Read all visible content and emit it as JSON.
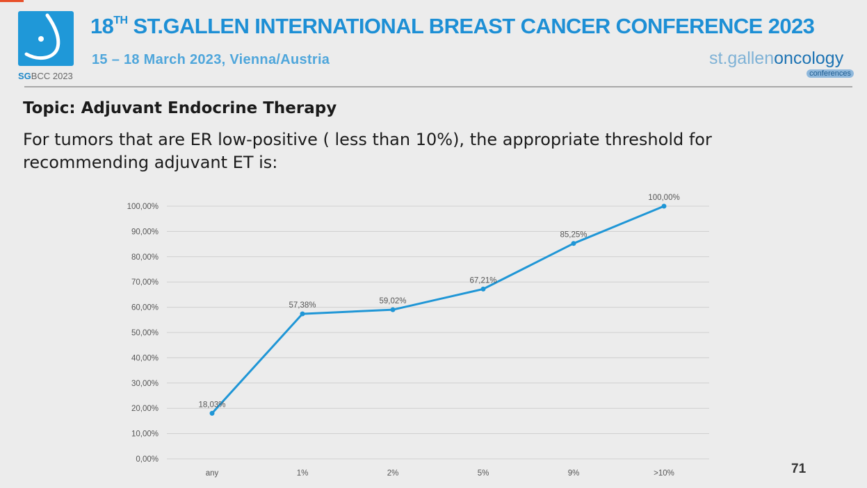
{
  "header": {
    "logo_text_bold": "SG",
    "logo_text_rest": "BCC 2023",
    "title_number": "18",
    "title_suffix": "TH",
    "title_rest": " ST.GALLEN INTERNATIONAL BREAST CANCER CONFERENCE 2023",
    "subtitle": "15 – 18 March 2023, Vienna/Austria",
    "brand_part1": "st.gallen",
    "brand_part2": "oncology",
    "brand_part3": "conferences"
  },
  "slide": {
    "topic": "Topic: Adjuvant Endocrine Therapy",
    "question": "For tumors that are ER low-positive ( less than 10%), the appropriate threshold for recommending adjuvant ET is:",
    "page_number": "71"
  },
  "colors": {
    "accent": "#1d8fd5",
    "line": "#1f96d6"
  },
  "chart_data": {
    "type": "line",
    "categories": [
      "any",
      "1%",
      "2%",
      "5%",
      "9%",
      ">10%"
    ],
    "values": [
      18.03,
      57.38,
      59.02,
      67.21,
      85.25,
      100.0
    ],
    "data_labels": [
      "18,03%",
      "57,38%",
      "59,02%",
      "67,21%",
      "85,25%",
      "100,00%"
    ],
    "ylim": [
      0,
      100
    ],
    "yticks": [
      "0,00%",
      "10,00%",
      "20,00%",
      "30,00%",
      "40,00%",
      "50,00%",
      "60,00%",
      "70,00%",
      "80,00%",
      "90,00%",
      "100,00%"
    ],
    "grid": true,
    "legend": "none"
  }
}
